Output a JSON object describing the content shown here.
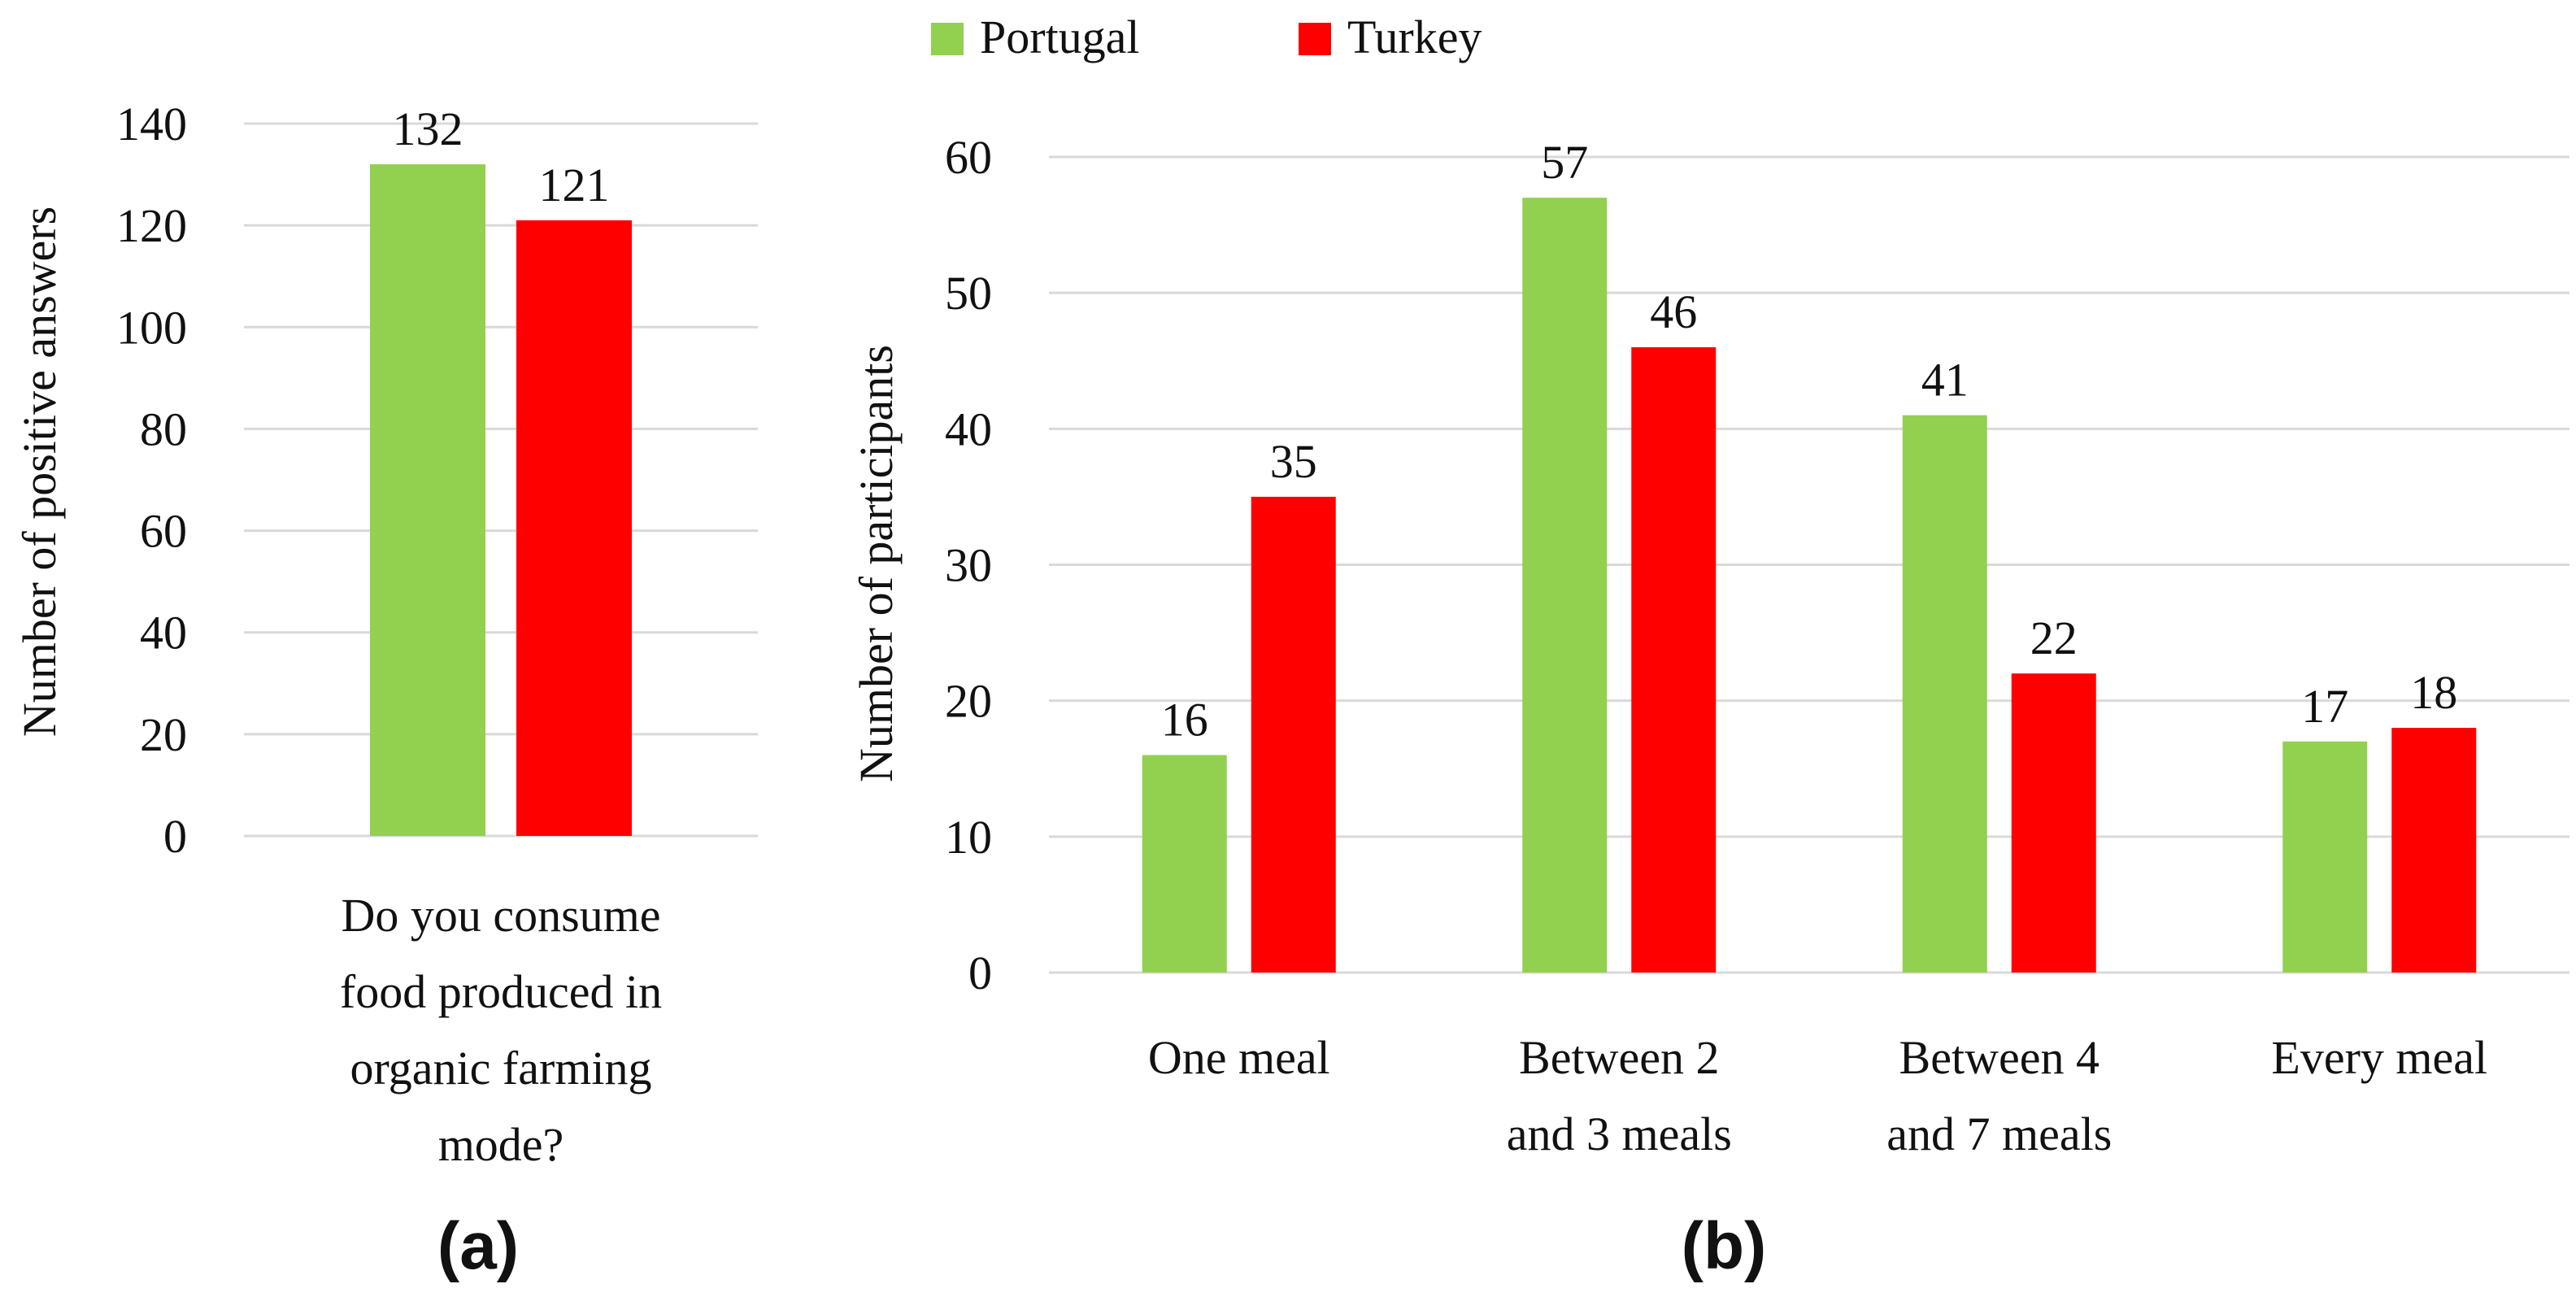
{
  "legend": {
    "items": [
      {
        "name": "Portugal",
        "color": "#92d050"
      },
      {
        "name": "Turkey",
        "color": "#ff0000"
      }
    ]
  },
  "panels": {
    "a": {
      "label": "(a)"
    },
    "b": {
      "label": "(b)"
    }
  },
  "chart_data": [
    {
      "type": "bar",
      "panel": "(a)",
      "title": "",
      "categories": [
        "Do you consume food produced in organic farming mode?"
      ],
      "category_lines": [
        [
          "Do you consume",
          "food produced in",
          "organic farming",
          "mode?"
        ]
      ],
      "series": [
        {
          "name": "Portugal",
          "values": [
            132
          ],
          "color": "#92d050"
        },
        {
          "name": "Turkey",
          "values": [
            121
          ],
          "color": "#ff0000"
        }
      ],
      "data_labels": true,
      "xlabel": "",
      "ylabel": "Number of positive answers",
      "ylim": [
        0,
        140
      ],
      "yticks": [
        0,
        20,
        40,
        60,
        80,
        100,
        120,
        140
      ],
      "grid": true,
      "legend": "top"
    },
    {
      "type": "bar",
      "panel": "(b)",
      "title": "",
      "categories": [
        "One meal",
        "Between 2 and 3 meals",
        "Between 4 and 7 meals",
        "Every meal"
      ],
      "category_lines": [
        [
          "One meal"
        ],
        [
          "Between 2",
          "and 3 meals"
        ],
        [
          "Between 4",
          "and 7 meals"
        ],
        [
          "Every meal"
        ]
      ],
      "series": [
        {
          "name": "Portugal",
          "values": [
            16,
            57,
            41,
            17
          ],
          "color": "#92d050"
        },
        {
          "name": "Turkey",
          "values": [
            35,
            46,
            22,
            18
          ],
          "color": "#ff0000"
        }
      ],
      "data_labels": true,
      "xlabel": "",
      "ylabel": "Number of participants",
      "ylim": [
        0,
        60
      ],
      "yticks": [
        0,
        10,
        20,
        30,
        40,
        50,
        60
      ],
      "grid": true,
      "legend": "top"
    }
  ]
}
